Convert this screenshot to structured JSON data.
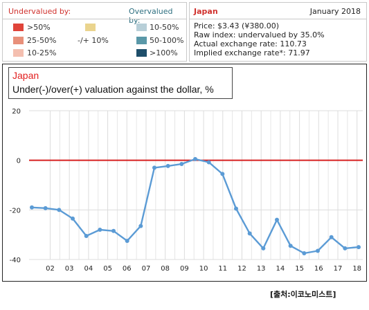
{
  "legend": {
    "under_heading": "Undervalued by:",
    "over_heading": "Overvalued by:",
    "under_items": [
      {
        "label": ">50%",
        "color": "#e0443a"
      },
      {
        "label": "25-50%",
        "color": "#e8907a"
      },
      {
        "label": "10-25%",
        "color": "#f4bfb0"
      }
    ],
    "neutral_item": {
      "label": "-/+ 10%",
      "color": "#ead48e"
    },
    "over_items": [
      {
        "label": "10-50%",
        "color": "#b8cfd8"
      },
      {
        "label": "50-100%",
        "color": "#5a98a8"
      },
      {
        "label": ">100%",
        "color": "#1e4e6a"
      }
    ]
  },
  "info": {
    "country": "Japan",
    "date": "January 2018",
    "lines": [
      "Price: $3.43 (¥380.00)",
      "Raw index: undervalued by 35.0%",
      "Actual exchange rate: 110.73",
      "Implied exchange rate*: 71.97"
    ]
  },
  "source": "[출처:이코노미스트]",
  "chart_data": {
    "type": "line",
    "title_country": "Japan",
    "title": "Under(-)/over(+) valuation against the dollar, %",
    "ylim": [
      -40,
      20
    ],
    "yticks": [
      20,
      0,
      -20,
      -40
    ],
    "xlim": [
      2000.9,
      2018.3
    ],
    "xticks": [
      {
        "label": "02",
        "x": 2002
      },
      {
        "label": "03",
        "x": 2003
      },
      {
        "label": "04",
        "x": 2004
      },
      {
        "label": "05",
        "x": 2005
      },
      {
        "label": "06",
        "x": 2006
      },
      {
        "label": "07",
        "x": 2007
      },
      {
        "label": "08",
        "x": 2008
      },
      {
        "label": "09",
        "x": 2009
      },
      {
        "label": "10",
        "x": 2010
      },
      {
        "label": "11",
        "x": 2011
      },
      {
        "label": "12",
        "x": 2012
      },
      {
        "label": "13",
        "x": 2013
      },
      {
        "label": "14",
        "x": 2014
      },
      {
        "label": "15",
        "x": 2015
      },
      {
        "label": "16",
        "x": 2016
      },
      {
        "label": "17",
        "x": 2017
      },
      {
        "label": "18",
        "x": 2018
      }
    ],
    "grid": true,
    "zero_line_color": "#d62020",
    "line_color": "#5b9bd5",
    "x": [
      2000.9,
      2001.8,
      2002.6,
      2003.5,
      2004.4,
      2005.4,
      2006.4,
      2007.2,
      2008.0,
      2008.9,
      2009.6,
      2010.4,
      2010.9,
      2011.4,
      2012.3,
      2013.1,
      2013.9,
      2014.6,
      2015.4,
      2016.1,
      2016.8,
      2017.4,
      2018.1,
      2018.6,
      2019.3
    ],
    "values": [
      -19,
      -19.3,
      -20,
      -23.5,
      -30.5,
      -28,
      -28.5,
      -32.5,
      -26.5,
      -3,
      -2.3,
      -1.5,
      0.5,
      -0.8,
      -5.5,
      -19.5,
      -29.5,
      -35.5,
      -24,
      -34.5,
      -37.5,
      -36.5,
      -31,
      -35.5,
      -35
    ]
  }
}
